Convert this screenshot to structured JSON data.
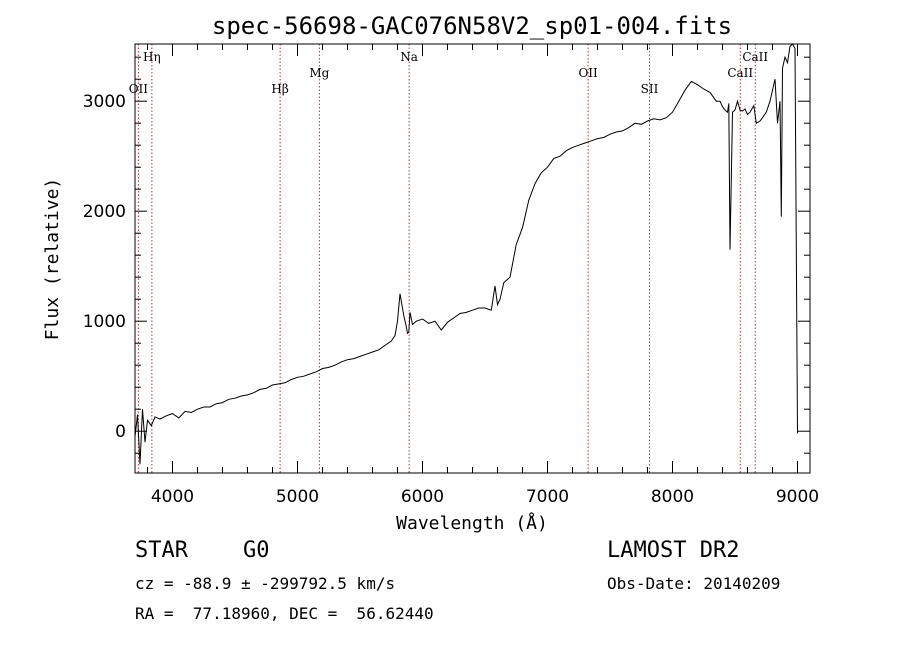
{
  "chart_data": {
    "type": "line",
    "title": "spec-56698-GAC076N58V2_sp01-004.fits",
    "xlabel": "Wavelength (Å)",
    "ylabel": "Flux (relative)",
    "xlim": [
      3700,
      9100
    ],
    "ylim": [
      -380,
      3520
    ],
    "xticks": [
      4000,
      5000,
      6000,
      7000,
      8000,
      9000
    ],
    "yticks": [
      0,
      1000,
      2000,
      3000
    ],
    "series": [
      {
        "color": "#000000",
        "x": [
          3700,
          3720,
          3740,
          3760,
          3780,
          3800,
          3830,
          3860,
          3900,
          3950,
          4000,
          4050,
          4100,
          4150,
          4200,
          4250,
          4300,
          4350,
          4400,
          4450,
          4500,
          4550,
          4600,
          4650,
          4700,
          4750,
          4800,
          4850,
          4900,
          4950,
          5000,
          5050,
          5100,
          5150,
          5200,
          5250,
          5300,
          5350,
          5400,
          5450,
          5500,
          5550,
          5600,
          5650,
          5700,
          5750,
          5780,
          5800,
          5820,
          5850,
          5870,
          5880,
          5890,
          5900,
          5920,
          5950,
          6000,
          6050,
          6100,
          6150,
          6200,
          6250,
          6300,
          6350,
          6400,
          6450,
          6500,
          6550,
          6580,
          6600,
          6620,
          6650,
          6700,
          6750,
          6800,
          6850,
          6900,
          6950,
          7000,
          7050,
          7100,
          7150,
          7200,
          7250,
          7300,
          7350,
          7400,
          7450,
          7500,
          7550,
          7600,
          7650,
          7700,
          7750,
          7800,
          7850,
          7900,
          7950,
          8000,
          8050,
          8100,
          8150,
          8200,
          8250,
          8300,
          8350,
          8380,
          8400,
          8420,
          8440,
          8450,
          8460,
          8480,
          8500,
          8520,
          8540,
          8560,
          8580,
          8600,
          8620,
          8650,
          8670,
          8700,
          8720,
          8750,
          8780,
          8800,
          8820,
          8840,
          8860,
          8870,
          8880,
          8900,
          8920,
          8940,
          8960,
          8980,
          9000
        ],
        "values": [
          -50,
          150,
          -300,
          200,
          -100,
          100,
          50,
          130,
          110,
          140,
          160,
          120,
          180,
          170,
          200,
          220,
          220,
          250,
          260,
          290,
          300,
          320,
          330,
          350,
          380,
          390,
          420,
          430,
          440,
          470,
          490,
          500,
          520,
          540,
          570,
          580,
          600,
          630,
          650,
          660,
          680,
          700,
          720,
          740,
          780,
          820,
          870,
          1000,
          1250,
          1050,
          950,
          890,
          900,
          1080,
          970,
          1000,
          1020,
          980,
          1000,
          920,
          990,
          1030,
          1070,
          1080,
          1100,
          1120,
          1120,
          1100,
          1320,
          1150,
          1200,
          1350,
          1400,
          1700,
          1850,
          2100,
          2250,
          2350,
          2400,
          2480,
          2500,
          2550,
          2580,
          2600,
          2620,
          2640,
          2660,
          2670,
          2700,
          2720,
          2730,
          2760,
          2800,
          2790,
          2820,
          2840,
          2830,
          2850,
          2900,
          3000,
          3100,
          3180,
          3150,
          3110,
          3080,
          3000,
          3000,
          2950,
          2920,
          2900,
          2980,
          1650,
          2900,
          2920,
          3000,
          2920,
          2910,
          2930,
          2880,
          2900,
          2960,
          2800,
          2820,
          2850,
          2900,
          3000,
          3100,
          3200,
          2800,
          3000,
          1950,
          3300,
          3400,
          3350,
          3500,
          3600,
          3480,
          -20
        ]
      }
    ],
    "spectral_lines": [
      {
        "label": "Hη",
        "x": 3835
      },
      {
        "label": "OII",
        "x": 3727
      },
      {
        "label": "Hβ",
        "x": 4861
      },
      {
        "label": "Mg",
        "x": 5175
      },
      {
        "label": "Na",
        "x": 5893
      },
      {
        "label": "OII",
        "x": 7325
      },
      {
        "label": "SII",
        "x": 7816
      },
      {
        "label": "CaII",
        "x": 8542
      },
      {
        "label": "CaII",
        "x": 8662
      }
    ]
  },
  "info": {
    "object_class": "STAR",
    "subclass": "G0",
    "survey": "LAMOST DR2",
    "cz": "cz = -88.9 ± -299792.5 km/s",
    "obs_date": "Obs-Date: 20140209",
    "radec": "RA =  77.18960, DEC =  56.62440"
  }
}
